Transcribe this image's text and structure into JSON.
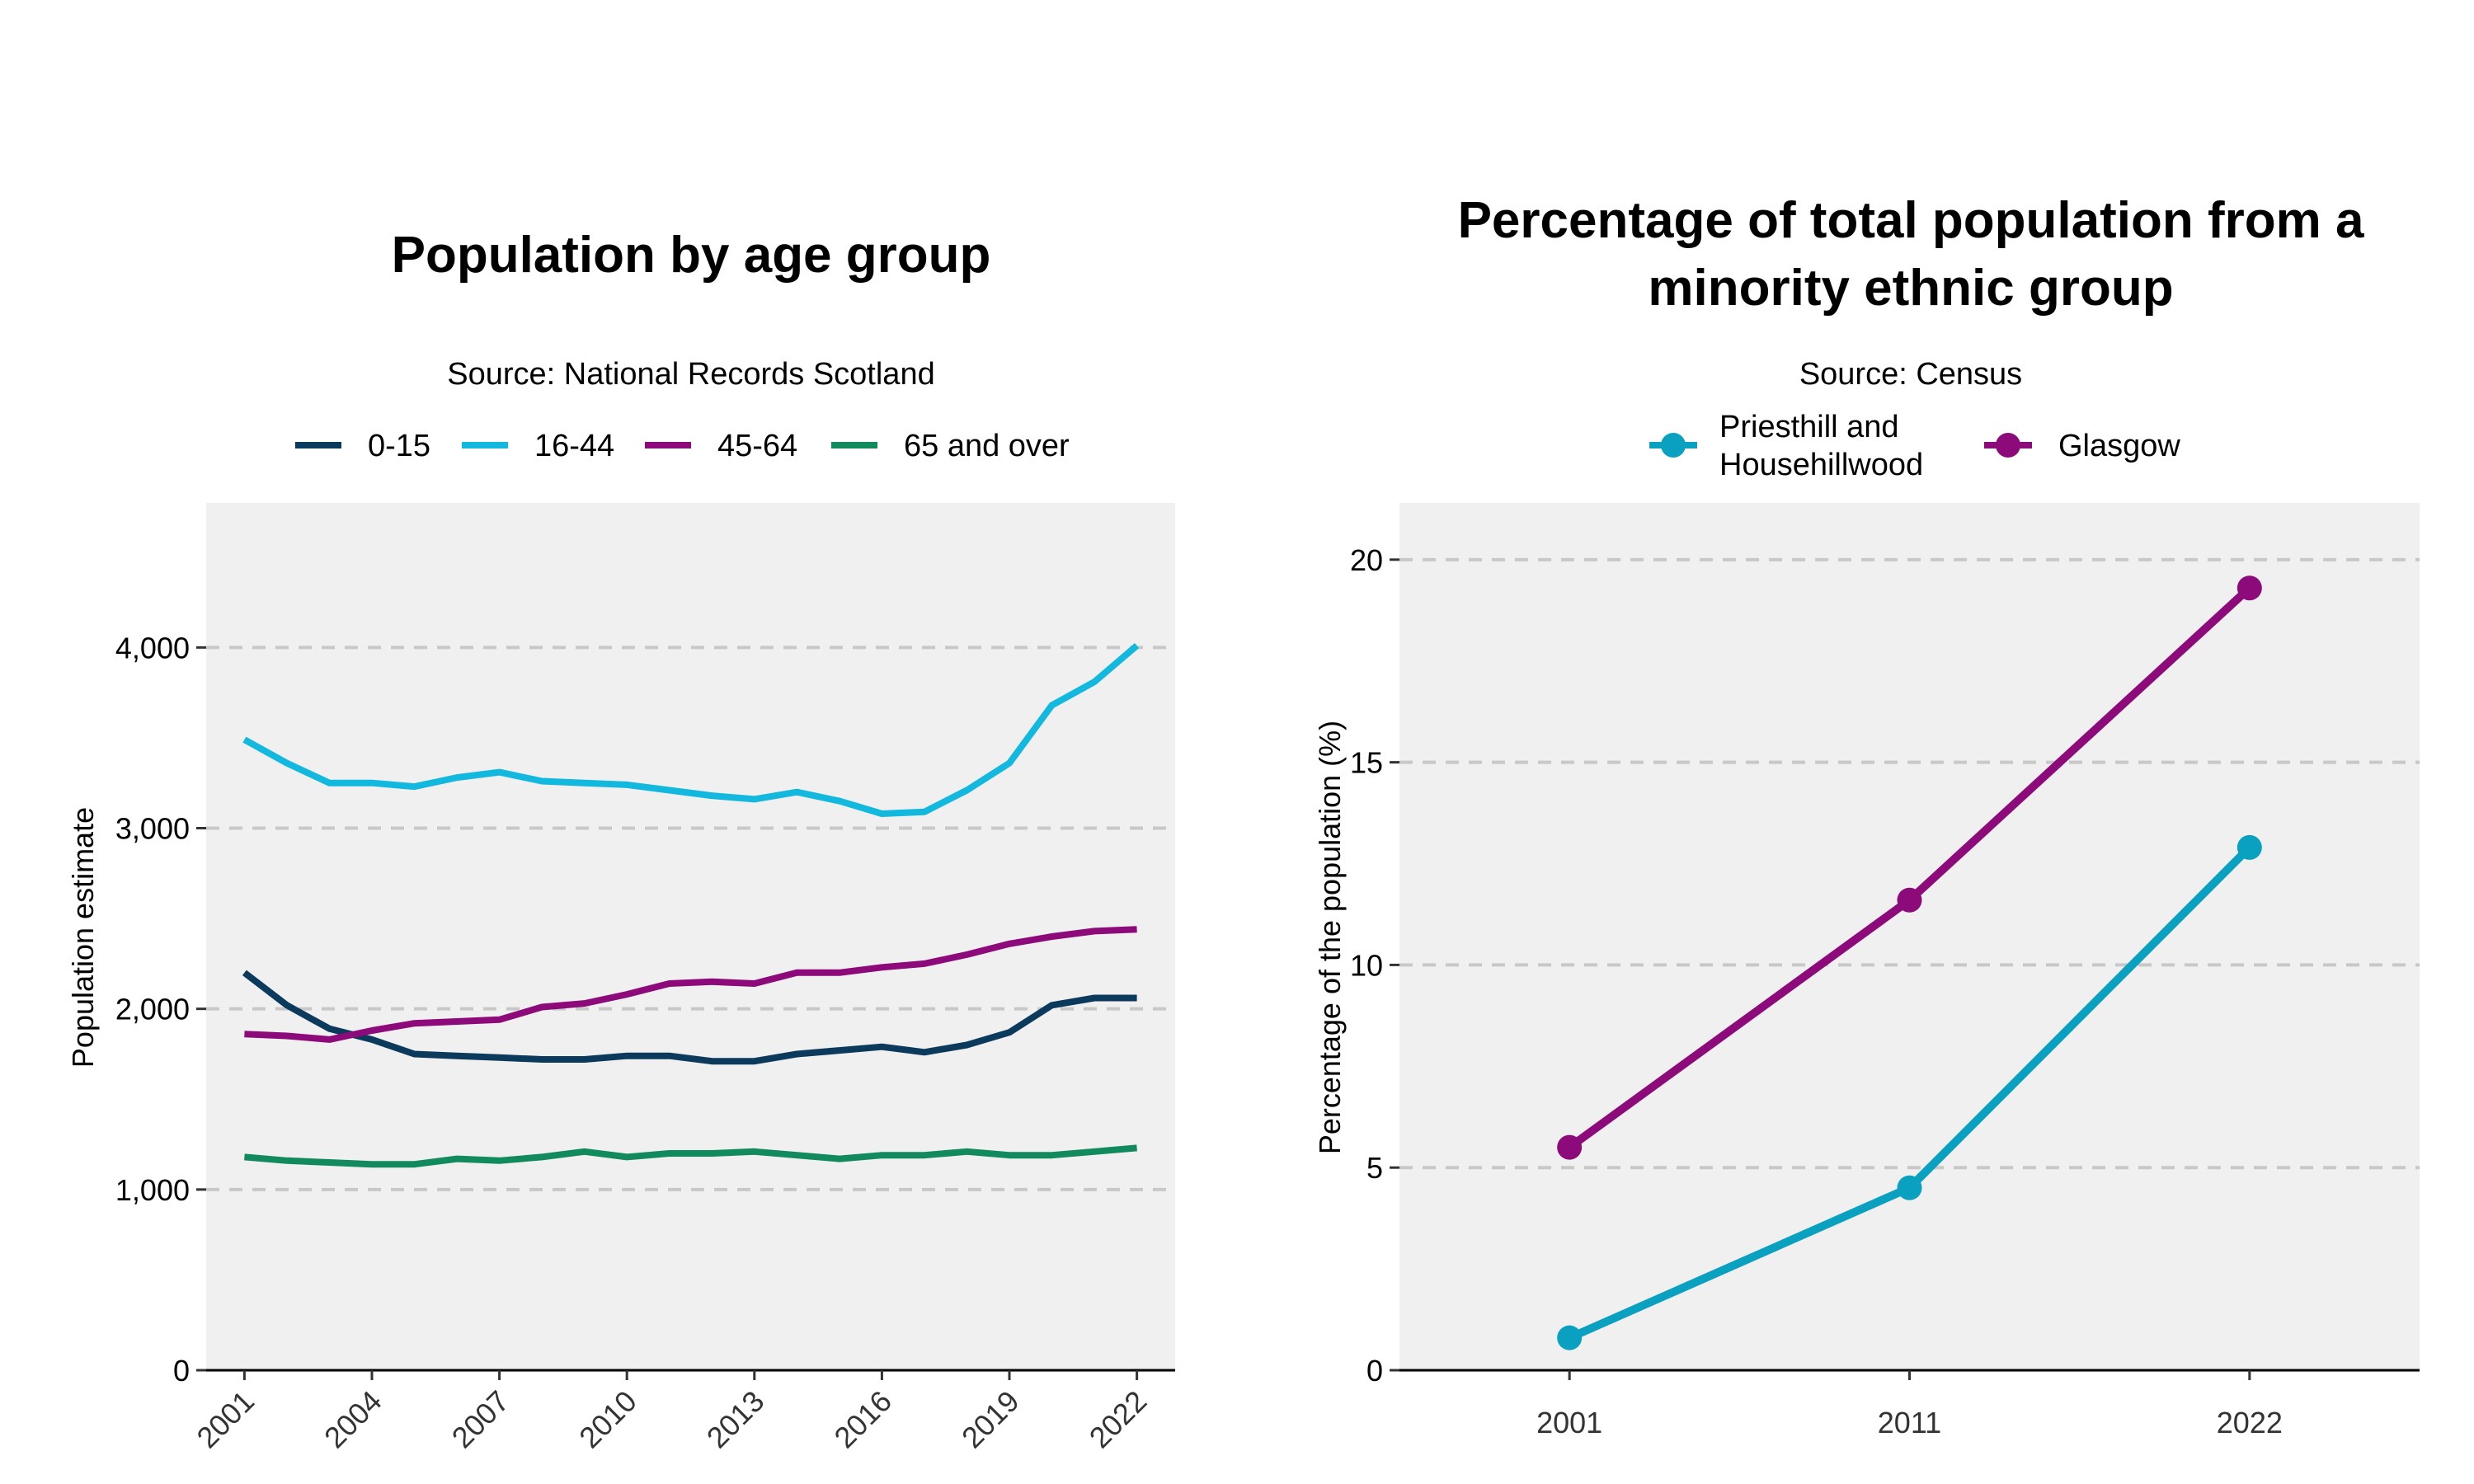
{
  "chart_data": [
    {
      "type": "line",
      "title": "Population by age group",
      "subtitle": "Source: National Records Scotland",
      "xlabel": "",
      "ylabel": "Population estimate",
      "ylim": [
        0,
        4800
      ],
      "yticks": [
        0,
        1000,
        2000,
        3000,
        4000
      ],
      "ytick_labels": [
        "0",
        "1,000",
        "2,000",
        "3,000",
        "4,000"
      ],
      "xlim": [
        2000.1,
        2022.9
      ],
      "xticks": [
        2001,
        2004,
        2007,
        2010,
        2013,
        2016,
        2019,
        2022
      ],
      "xtick_labels": [
        "2001",
        "2004",
        "2007",
        "2010",
        "2013",
        "2016",
        "2019",
        "2022"
      ],
      "grid": "horizontal dashed",
      "legend_position": "top",
      "x": [
        2001,
        2002,
        2003,
        2004,
        2005,
        2006,
        2007,
        2008,
        2009,
        2010,
        2011,
        2012,
        2013,
        2014,
        2015,
        2016,
        2017,
        2018,
        2019,
        2020,
        2021,
        2022
      ],
      "series": [
        {
          "name": "0-15",
          "color": "#0b3a5c",
          "values": [
            2200,
            2020,
            1890,
            1830,
            1750,
            1740,
            1730,
            1720,
            1720,
            1740,
            1740,
            1710,
            1710,
            1750,
            1770,
            1790,
            1760,
            1800,
            1870,
            2020,
            2060,
            2060
          ]
        },
        {
          "name": "16-44",
          "color": "#12b8dd",
          "values": [
            3490,
            3360,
            3250,
            3250,
            3230,
            3280,
            3310,
            3260,
            3250,
            3240,
            3210,
            3180,
            3160,
            3200,
            3150,
            3080,
            3090,
            3210,
            3360,
            3680,
            3810,
            4010
          ]
        },
        {
          "name": "45-64",
          "color": "#8c0a7a",
          "values": [
            1860,
            1850,
            1830,
            1880,
            1920,
            1930,
            1940,
            2010,
            2030,
            2080,
            2140,
            2150,
            2140,
            2200,
            2200,
            2230,
            2250,
            2300,
            2360,
            2400,
            2430,
            2440
          ]
        },
        {
          "name": "65 and over",
          "color": "#118a5e",
          "values": [
            1180,
            1160,
            1150,
            1140,
            1140,
            1170,
            1160,
            1180,
            1210,
            1180,
            1200,
            1200,
            1210,
            1190,
            1170,
            1190,
            1190,
            1210,
            1190,
            1190,
            1210,
            1230
          ]
        }
      ]
    },
    {
      "type": "line",
      "title": "Percentage of total population from a minority ethnic group",
      "title_lines": [
        "Percentage of total population from a",
        "minority ethnic group"
      ],
      "subtitle": "Source: Census",
      "xlabel": "",
      "ylabel": "Percentage of the population (%)",
      "ylim": [
        0,
        21.4
      ],
      "yticks": [
        0,
        5,
        10,
        15,
        20
      ],
      "ytick_labels": [
        "0",
        "5",
        "10",
        "15",
        "20"
      ],
      "categories": [
        "2001",
        "2011",
        "2022"
      ],
      "grid": "horizontal dashed",
      "legend_position": "top",
      "markers": true,
      "series": [
        {
          "name": "Priesthill and Househillwood",
          "label_lines": [
            "Priesthill and",
            "Househillwood"
          ],
          "color": "#0aa0c0",
          "values": [
            0.8,
            4.5,
            12.9
          ]
        },
        {
          "name": "Glasgow",
          "label_lines": [
            "Glasgow"
          ],
          "color": "#8c0a7a",
          "values": [
            5.5,
            11.6,
            19.3
          ]
        }
      ]
    }
  ]
}
